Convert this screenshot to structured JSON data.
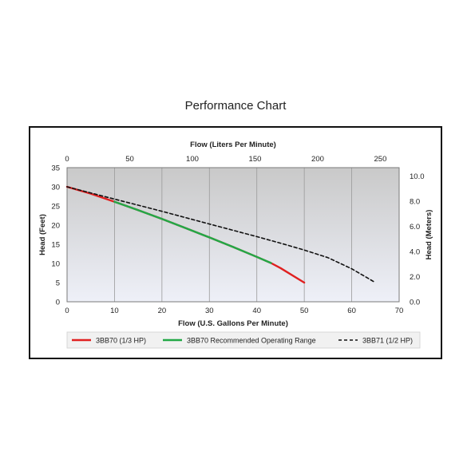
{
  "page_title": "Performance Chart",
  "chart_data": {
    "type": "line",
    "title": "Performance Chart",
    "xlabel": "Flow (U.S. Gallons Per Minute)",
    "ylabel": "Head (Feet)",
    "x2label": "Flow (Liters Per Minute)",
    "y2label": "Head (Meters)",
    "xlim": [
      0,
      70
    ],
    "ylim": [
      0,
      35
    ],
    "x2lim": [
      0,
      265
    ],
    "y2lim": [
      0,
      10.67
    ],
    "x_ticks": [
      "0",
      "10",
      "20",
      "30",
      "40",
      "50",
      "60",
      "70"
    ],
    "y_ticks": [
      "0",
      "5",
      "10",
      "15",
      "20",
      "25",
      "30",
      "35"
    ],
    "x2_ticks": [
      "0",
      "50",
      "100",
      "150",
      "200",
      "250"
    ],
    "y2_ticks": [
      "0.0",
      "2.0",
      "4.0",
      "6.0",
      "8.0",
      "10.0"
    ],
    "grid": true,
    "legend_position": "bottom",
    "series": [
      {
        "name": "3BB70 (1/3 HP)",
        "color": "#e02020",
        "style": "solid",
        "x": [
          0,
          5,
          10,
          15,
          20,
          25,
          30,
          35,
          40,
          43,
          45,
          50
        ],
        "y": [
          30,
          28.2,
          26.1,
          23.9,
          21.6,
          19.2,
          16.8,
          14.3,
          11.7,
          10.1,
          8.8,
          5
        ]
      },
      {
        "name": "3BB70 Recommended Operating Range",
        "color": "#22a846",
        "style": "solid",
        "x": [
          10,
          15,
          20,
          25,
          30,
          35,
          40,
          43
        ],
        "y": [
          26.1,
          23.9,
          21.6,
          19.2,
          16.8,
          14.3,
          11.7,
          10.1
        ]
      },
      {
        "name": "3BB71 (1/2 HP)",
        "color": "#111111",
        "style": "dashed",
        "x": [
          0,
          10,
          20,
          30,
          40,
          45,
          50,
          55,
          60,
          65
        ],
        "y": [
          30,
          26.8,
          23.6,
          20.3,
          17.0,
          15.3,
          13.5,
          11.5,
          8.6,
          5
        ]
      }
    ]
  }
}
